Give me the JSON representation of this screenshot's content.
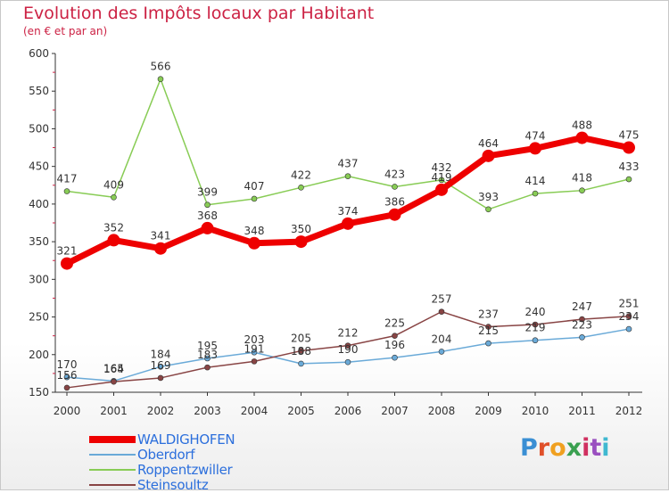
{
  "title": "Evolution des Impôts locaux par Habitant",
  "subtitle": "(en € et par an)",
  "logo": {
    "text": "Proxiti",
    "colors": [
      "#3a8fd4",
      "#e0502a",
      "#f0a020",
      "#3aa050",
      "#d03060",
      "#9a50c0",
      "#40b8d0"
    ]
  },
  "chart_data": {
    "type": "line",
    "x": [
      "2000",
      "2001",
      "2002",
      "2003",
      "2004",
      "2005",
      "2006",
      "2007",
      "2008",
      "2009",
      "2010",
      "2011",
      "2012"
    ],
    "ylim": [
      150,
      600
    ],
    "yticks": [
      150,
      200,
      250,
      300,
      350,
      400,
      450,
      500,
      550,
      600
    ],
    "grid": false,
    "legend_position": "bottom-left",
    "series": [
      {
        "name": "WALDIGHOFEN",
        "color": "#ee0000",
        "values": [
          321,
          352,
          341,
          368,
          348,
          350,
          374,
          386,
          419,
          464,
          474,
          488,
          475
        ],
        "labels": [
          "321",
          "352",
          "341",
          "368",
          "348",
          "350",
          "374",
          "386",
          "419",
          "464",
          "474",
          "488",
          "475"
        ]
      },
      {
        "name": "Oberdorf",
        "color": "#6aaad8",
        "values": [
          170,
          165,
          184,
          195,
          203,
          188,
          190,
          196,
          204,
          215,
          219,
          223,
          234
        ],
        "labels": [
          "170",
          "165",
          "184",
          "195",
          "203",
          "188",
          "190",
          "196",
          "204",
          "215",
          "219",
          "223",
          "234"
        ]
      },
      {
        "name": "Roppentzwiller",
        "color": "#88cc55",
        "values": [
          417,
          409,
          566,
          399,
          407,
          422,
          437,
          423,
          432,
          393,
          414,
          418,
          433
        ],
        "labels": [
          "417",
          "409",
          "566",
          "399",
          "407",
          "422",
          "437",
          "423",
          "432",
          "393",
          "414",
          "418",
          "433"
        ]
      },
      {
        "name": "Steinsoultz",
        "color": "#884444",
        "values": [
          156,
          164,
          169,
          183,
          191,
          205,
          212,
          225,
          257,
          237,
          240,
          247,
          251
        ],
        "labels": [
          "156",
          "164",
          "169",
          "183",
          "191",
          "205",
          "212",
          "225",
          "257",
          "237",
          "240",
          "247",
          "251"
        ]
      }
    ]
  }
}
